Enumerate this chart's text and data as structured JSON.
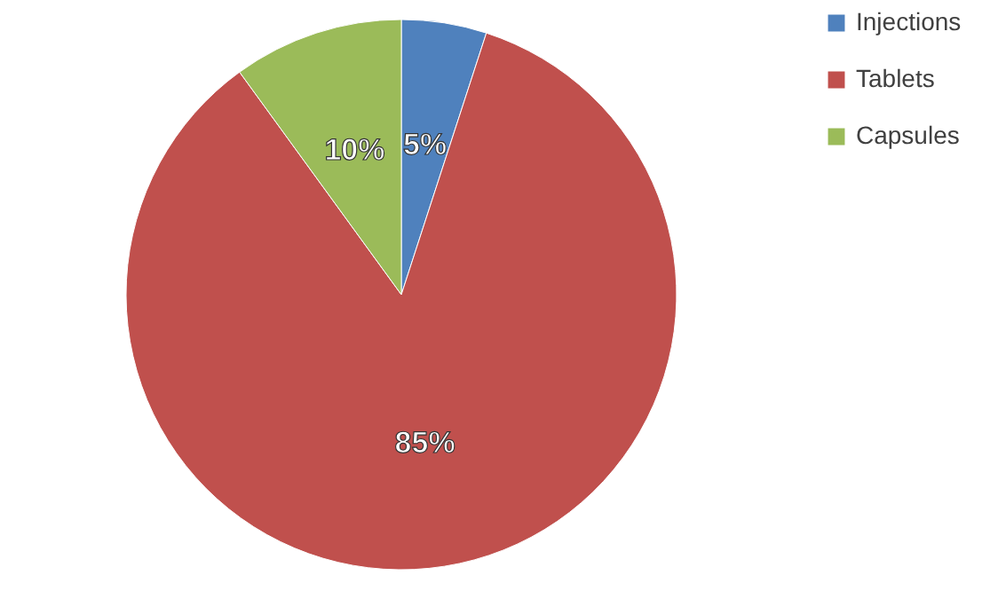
{
  "chart_data": {
    "type": "pie",
    "categories": [
      "Injections",
      "Tablets",
      "Capsules"
    ],
    "values": [
      5,
      85,
      10
    ],
    "colors": [
      "#4f81bd",
      "#c0504d",
      "#9bbb59"
    ],
    "value_labels": [
      "5%",
      "85%",
      "10%"
    ],
    "legend": "right"
  }
}
